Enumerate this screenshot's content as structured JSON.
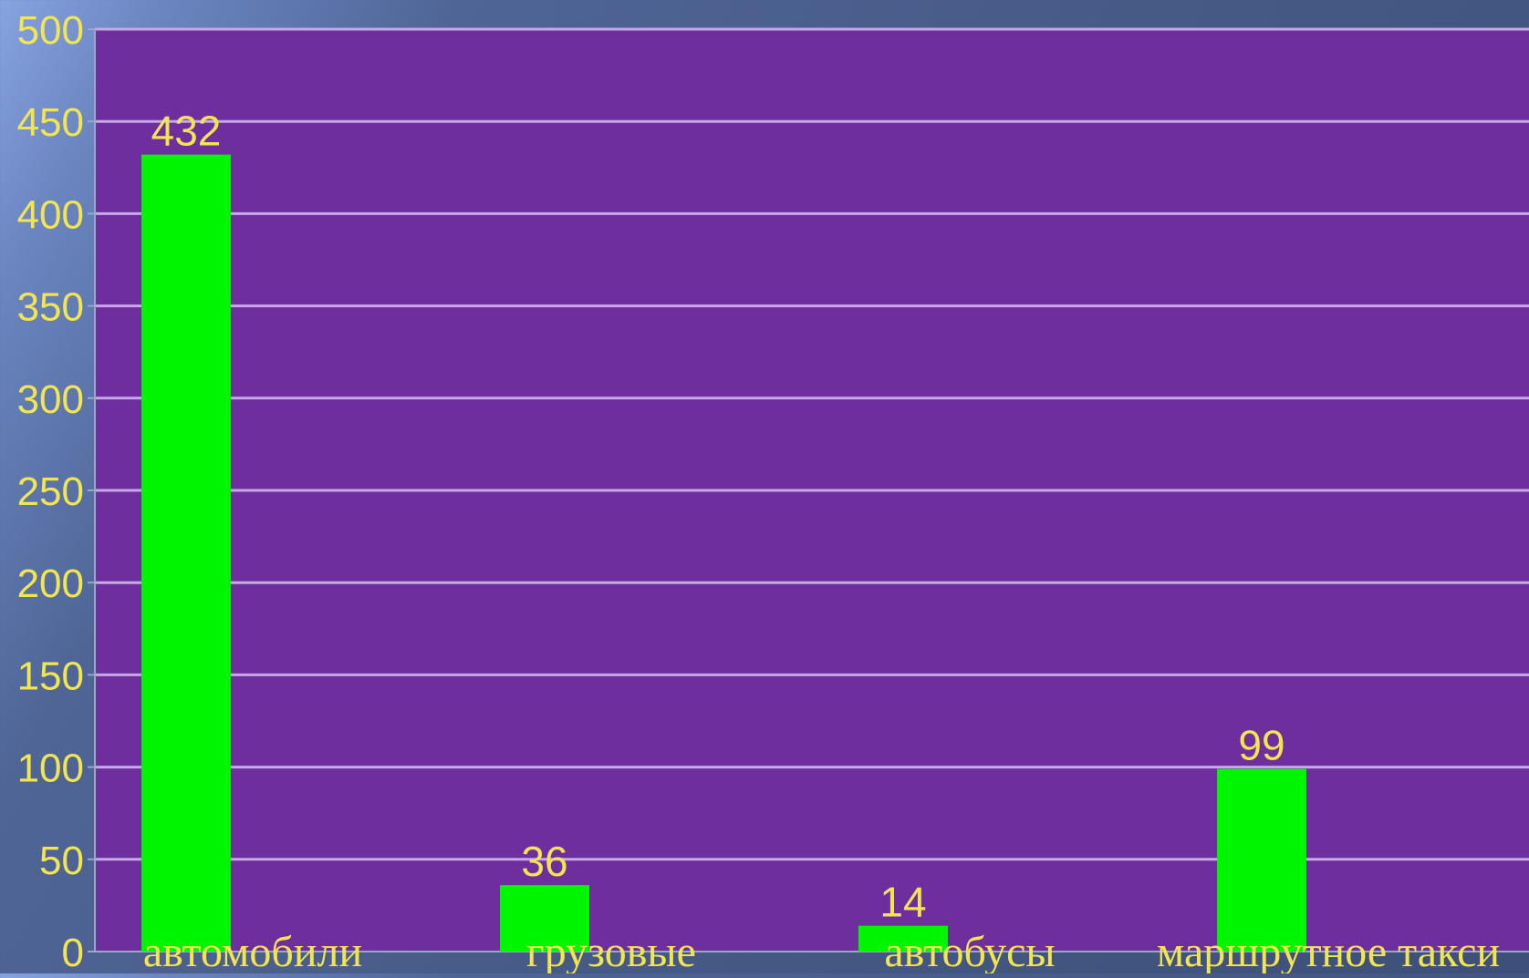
{
  "chart_data": {
    "type": "bar",
    "categories": [
      "автомобили",
      "грузовые",
      "автобусы",
      "маршрутное такси"
    ],
    "values": [
      432,
      36,
      14,
      99
    ],
    "data_labels": [
      "432",
      "36",
      "14",
      "99"
    ],
    "yticks": [
      0,
      50,
      100,
      150,
      200,
      250,
      300,
      350,
      400,
      450,
      500
    ],
    "ytick_labels": [
      "0",
      "50",
      "100",
      "150",
      "200",
      "250",
      "300",
      "350",
      "400",
      "450",
      "500"
    ],
    "ylim": [
      0,
      500
    ],
    "grid": true,
    "legend": "none",
    "title": "",
    "xlabel": "",
    "ylabel": "",
    "colors": {
      "bar": "#00f500",
      "plot_background": "#6f2e9e",
      "gridline": "#c7a8e8",
      "label_text": "#f2e552"
    }
  }
}
